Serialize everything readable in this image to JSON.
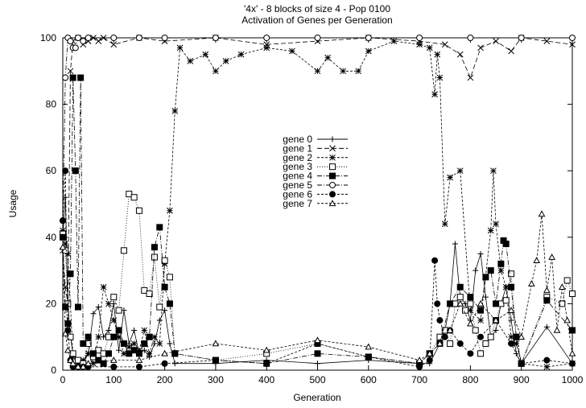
{
  "chart_data": {
    "type": "line",
    "title": "'4x' - 8 blocks of size 4 - Pop 0100",
    "subtitle": "Activation of Genes per Generation",
    "xlabel": "Generation",
    "ylabel": "Usage",
    "xlim": [
      0,
      1000
    ],
    "ylim": [
      0,
      100
    ],
    "xticks": [
      0,
      100,
      200,
      300,
      400,
      500,
      600,
      700,
      800,
      900,
      1000
    ],
    "yticks": [
      0,
      20,
      40,
      60,
      80,
      100
    ],
    "grid": false,
    "legend_position": "center",
    "series": [
      {
        "name": "gene 0",
        "marker": "plus",
        "dash": "",
        "x": [
          0,
          5,
          10,
          15,
          20,
          30,
          40,
          50,
          60,
          70,
          80,
          90,
          100,
          110,
          120,
          130,
          140,
          150,
          160,
          170,
          180,
          190,
          200,
          210,
          220,
          300,
          400,
          500,
          600,
          700,
          720,
          740,
          750,
          760,
          770,
          780,
          790,
          800,
          810,
          820,
          830,
          840,
          850,
          860,
          870,
          880,
          890,
          900,
          950,
          1000
        ],
        "y": [
          40,
          52,
          20,
          10,
          5,
          3,
          2,
          5,
          17,
          19,
          10,
          12,
          20,
          6,
          18,
          8,
          12,
          5,
          6,
          4,
          8,
          15,
          18,
          8,
          2,
          2,
          3,
          2,
          3,
          2,
          2,
          8,
          12,
          20,
          38,
          22,
          20,
          15,
          30,
          35,
          22,
          10,
          12,
          20,
          25,
          15,
          5,
          2,
          13,
          2
        ]
      },
      {
        "name": "gene 1",
        "marker": "cross",
        "dash": "6,3",
        "x": [
          0,
          5,
          10,
          15,
          20,
          30,
          40,
          50,
          60,
          70,
          80,
          100,
          150,
          200,
          300,
          400,
          500,
          600,
          700,
          750,
          780,
          800,
          820,
          850,
          880,
          900,
          950,
          1000
        ],
        "y": [
          36,
          25,
          20,
          90,
          99,
          100,
          98,
          99,
          100,
          99,
          100,
          98,
          100,
          99,
          100,
          98,
          99,
          100,
          99,
          98,
          95,
          88,
          97,
          99,
          96,
          100,
          99,
          98
        ]
      },
      {
        "name": "gene 2",
        "marker": "star",
        "dash": "3,2",
        "x": [
          0,
          5,
          10,
          20,
          30,
          40,
          50,
          60,
          70,
          80,
          90,
          100,
          110,
          120,
          130,
          140,
          150,
          160,
          170,
          180,
          190,
          200,
          210,
          220,
          230,
          250,
          280,
          300,
          320,
          350,
          400,
          450,
          500,
          520,
          550,
          580,
          600,
          650,
          700,
          720,
          730,
          735,
          740,
          750,
          760,
          780,
          800,
          820,
          840,
          845,
          850,
          860,
          870,
          880,
          890,
          900,
          950,
          1000
        ],
        "y": [
          42,
          38,
          35,
          4,
          2,
          3,
          5,
          2,
          10,
          25,
          20,
          15,
          10,
          5,
          7,
          8,
          6,
          12,
          5,
          10,
          8,
          32,
          48,
          78,
          97,
          93,
          95,
          90,
          93,
          95,
          97,
          96,
          90,
          94,
          90,
          90,
          96,
          99,
          98,
          97,
          83,
          95,
          88,
          44,
          58,
          60,
          18,
          15,
          42,
          60,
          44,
          30,
          25,
          10,
          8,
          2,
          1,
          2
        ]
      },
      {
        "name": "gene 3",
        "marker": "square",
        "dash": "1,2",
        "x": [
          0,
          5,
          10,
          15,
          20,
          30,
          40,
          50,
          60,
          70,
          80,
          90,
          100,
          110,
          120,
          130,
          140,
          150,
          160,
          170,
          180,
          190,
          200,
          210,
          220,
          300,
          400,
          500,
          600,
          700,
          720,
          740,
          750,
          760,
          770,
          780,
          790,
          800,
          810,
          820,
          830,
          840,
          850,
          860,
          870,
          880,
          890,
          900,
          950,
          980,
          990,
          1000
        ],
        "y": [
          41,
          36,
          20,
          10,
          5,
          3,
          2,
          8,
          4,
          6,
          5,
          10,
          22,
          18,
          36,
          53,
          52,
          48,
          24,
          23,
          34,
          19,
          33,
          28,
          5,
          3,
          5,
          8,
          4,
          2,
          5,
          10,
          12,
          8,
          20,
          22,
          18,
          20,
          12,
          5,
          8,
          10,
          15,
          20,
          21,
          29,
          10,
          2,
          22,
          20,
          27,
          23
        ]
      },
      {
        "name": "gene 4",
        "marker": "fsquare",
        "dash": "6,2,1,2",
        "x": [
          0,
          5,
          10,
          15,
          20,
          25,
          30,
          35,
          40,
          50,
          60,
          70,
          80,
          90,
          100,
          110,
          120,
          130,
          140,
          150,
          160,
          170,
          180,
          190,
          200,
          210,
          220,
          300,
          400,
          500,
          600,
          700,
          720,
          740,
          760,
          780,
          800,
          820,
          830,
          840,
          850,
          860,
          865,
          870,
          880,
          890,
          900,
          950,
          1000
        ],
        "y": [
          40,
          19,
          14,
          29,
          88,
          60,
          19,
          88,
          8,
          10,
          5,
          3,
          2,
          5,
          10,
          12,
          8,
          5,
          6,
          5,
          8,
          10,
          37,
          43,
          25,
          20,
          5,
          3,
          2,
          5,
          4,
          2,
          5,
          8,
          20,
          25,
          22,
          18,
          28,
          30,
          20,
          32,
          39,
          38,
          25,
          10,
          2,
          21,
          12
        ]
      },
      {
        "name": "gene 5",
        "marker": "circle",
        "dash": "6,2,1,2",
        "x": [
          0,
          5,
          10,
          15,
          20,
          25,
          30,
          40,
          50,
          100,
          150,
          200,
          300,
          400,
          500,
          600,
          700,
          800,
          900,
          1000
        ],
        "y": [
          45,
          88,
          100,
          99,
          97,
          97,
          100,
          99,
          100,
          100,
          100,
          100,
          100,
          100,
          100,
          100,
          100,
          100,
          100,
          100
        ]
      },
      {
        "name": "gene 6",
        "marker": "fcircle",
        "dash": "3,2",
        "x": [
          0,
          5,
          10,
          15,
          20,
          30,
          40,
          50,
          100,
          150,
          200,
          300,
          400,
          500,
          600,
          700,
          720,
          730,
          735,
          740,
          750,
          760,
          780,
          800,
          820,
          850,
          880,
          900,
          950,
          1000
        ],
        "y": [
          45,
          60,
          12,
          3,
          1,
          1,
          1,
          1,
          1,
          1,
          2,
          3,
          2,
          8,
          4,
          1,
          3,
          33,
          20,
          15,
          10,
          12,
          8,
          5,
          10,
          15,
          8,
          2,
          3,
          2
        ]
      },
      {
        "name": "gene 7",
        "marker": "triangle",
        "dash": "3,2",
        "x": [
          0,
          5,
          10,
          15,
          20,
          30,
          40,
          50,
          100,
          150,
          200,
          300,
          400,
          500,
          600,
          700,
          720,
          740,
          760,
          780,
          800,
          820,
          850,
          880,
          900,
          920,
          930,
          940,
          950,
          960,
          970,
          980,
          990,
          1000
        ],
        "y": [
          37,
          11,
          6,
          3,
          2,
          1,
          1,
          2,
          3,
          3,
          5,
          8,
          6,
          9,
          7,
          3,
          5,
          8,
          12,
          20,
          14,
          20,
          15,
          18,
          10,
          26,
          33,
          47,
          24,
          34,
          12,
          25,
          15,
          5
        ]
      }
    ]
  }
}
